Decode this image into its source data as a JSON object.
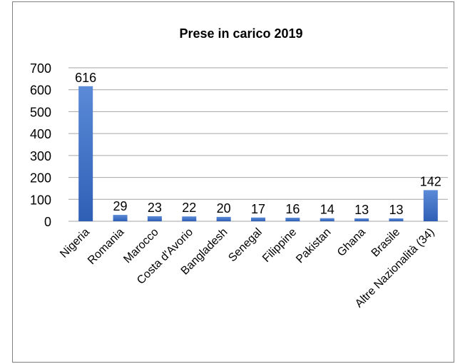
{
  "chart_data": {
    "type": "bar",
    "title": "Prese in carico 2019",
    "categories": [
      "Nigeria",
      "Romania",
      "Marocco",
      "Costa d'Avorio",
      "Bangladesh",
      "Senegal",
      "Filippine",
      "Pakistan",
      "Ghana",
      "Brasile",
      "Altre Nazionalità (34)"
    ],
    "values": [
      616,
      29,
      23,
      22,
      20,
      17,
      16,
      14,
      13,
      13,
      142
    ],
    "data_labels": [
      "616",
      "29",
      "23",
      "22",
      "20",
      "17",
      "16",
      "14",
      "13",
      "13",
      "142"
    ],
    "ylim": [
      0,
      700
    ],
    "yticks": [
      "0",
      "100",
      "200",
      "300",
      "400",
      "500",
      "600",
      "700"
    ],
    "xlabel": "",
    "ylabel": "",
    "grid": true,
    "legend": "none",
    "colors": {
      "bar_top": "#5b8ad8",
      "bar_bottom": "#2f5fb5",
      "grid": "#a6a6a6",
      "text": "#000000"
    }
  }
}
